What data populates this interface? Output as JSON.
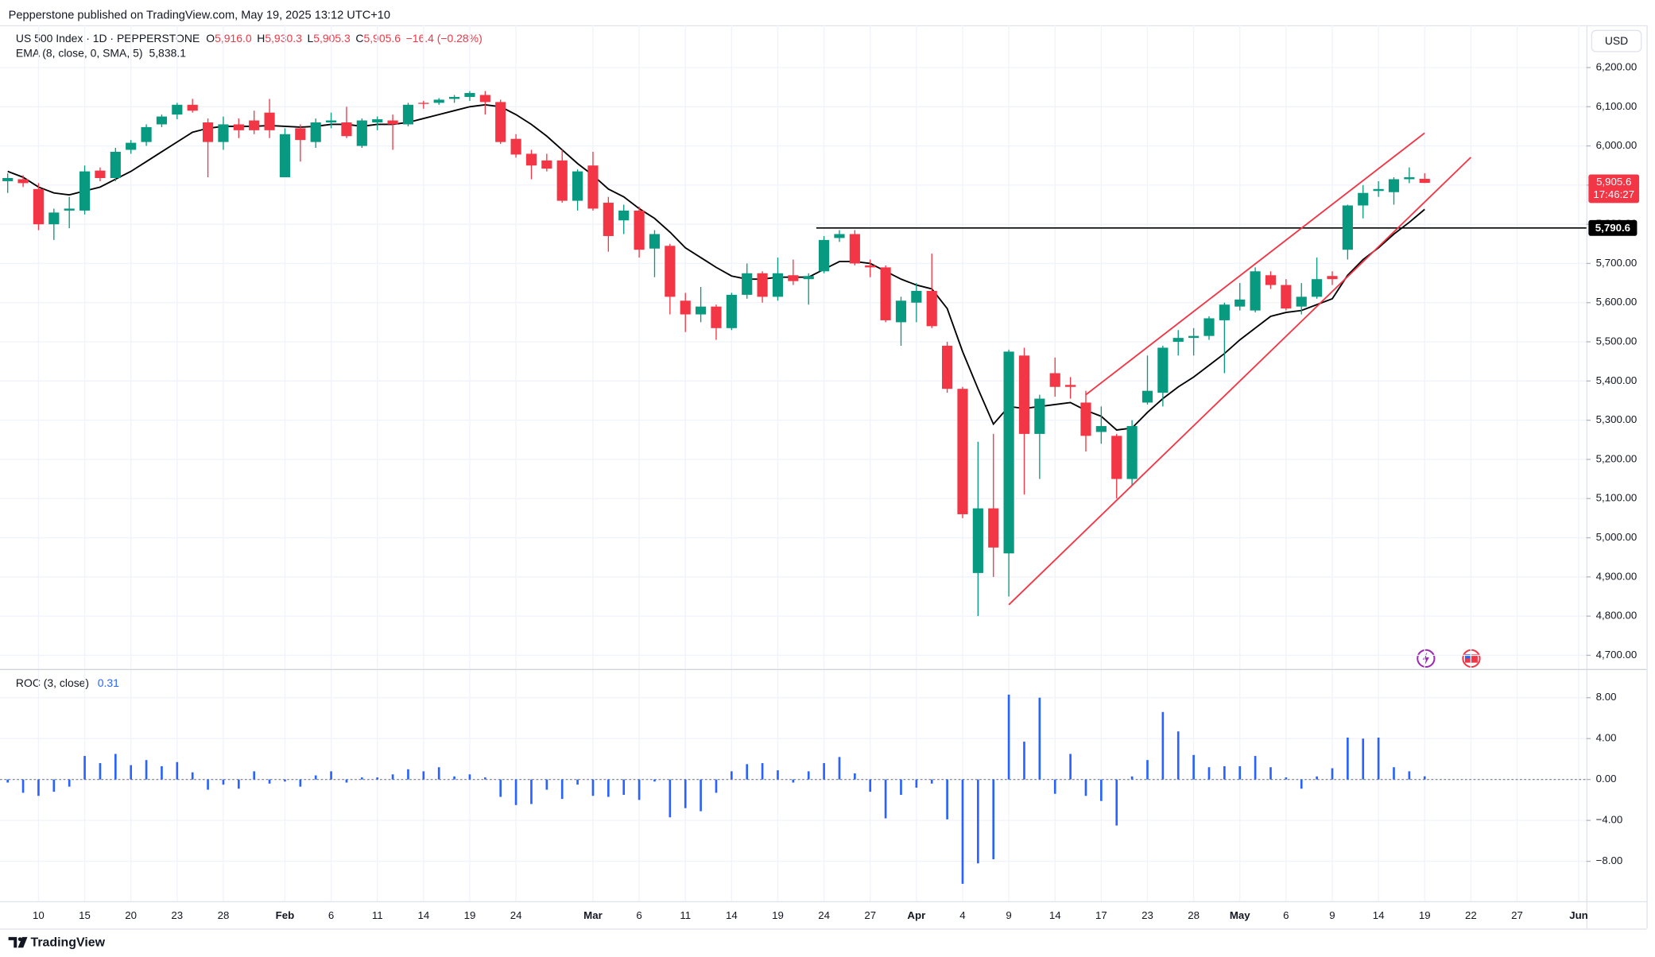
{
  "header": {
    "published": "Pepperstone published on TradingView.com, May 19, 2025 13:12 UTC+10",
    "legend": {
      "symbol": "US 500 Index · 1D · PEPPERSTONE",
      "ohlc": [
        {
          "key": "O",
          "value": "5,916.0"
        },
        {
          "key": "H",
          "value": "5,930.3"
        },
        {
          "key": "L",
          "value": "5,905.3"
        },
        {
          "key": "C",
          "value": "5,905.6"
        }
      ],
      "change": "−16.4 (−0.28%)",
      "ema_name": "EMA (8, close, 0, SMA, 5)",
      "ema_value": "5,838.1"
    },
    "currency": "USD",
    "brand": "TradingView"
  },
  "chart_data": [
    {
      "type": "candlestick",
      "up_color": "#089981",
      "down_color": "#f23645",
      "categories": [
        null,
        null,
        "10",
        null,
        null,
        "15",
        null,
        null,
        "20",
        null,
        null,
        "23",
        null,
        null,
        "28",
        null,
        null,
        null,
        "Feb",
        null,
        null,
        "6",
        null,
        null,
        "11",
        null,
        null,
        "14",
        null,
        null,
        "19",
        null,
        null,
        "24",
        null,
        null,
        null,
        null,
        "Mar",
        null,
        null,
        "6",
        null,
        null,
        "11",
        null,
        null,
        "14",
        null,
        null,
        "19",
        null,
        null,
        "24",
        null,
        null,
        "27",
        null,
        null,
        "Apr",
        null,
        null,
        "4",
        null,
        null,
        "9",
        null,
        null,
        "14",
        null,
        null,
        "17",
        null,
        null,
        "23",
        null,
        null,
        "28",
        null,
        null,
        "May",
        null,
        null,
        "6",
        null,
        null,
        "9",
        null,
        null,
        "14",
        null,
        null,
        "19",
        null,
        null,
        "22",
        null,
        null,
        "27",
        null,
        null,
        null,
        "Jun"
      ],
      "open": [
        5910,
        5915,
        5890,
        5800,
        5835,
        5835,
        5937,
        5918,
        5990,
        6010,
        6055,
        6080,
        6105,
        6060,
        6010,
        6055,
        6065,
        6085,
        5920,
        6045,
        6010,
        6060,
        6060,
        6000,
        6060,
        6065,
        6055,
        6110,
        6110,
        6120,
        6125,
        6130,
        6112,
        6018,
        5980,
        5963,
        5963,
        5860,
        5950,
        5855,
        5810,
        5835,
        5738,
        5745,
        5605,
        5570,
        5590,
        5535,
        5620,
        5675,
        5615,
        5670,
        5660,
        5680,
        5765,
        5775,
        5695,
        5690,
        5550,
        5600,
        5630,
        5490,
        5380,
        4910,
        5075,
        4960,
        5465,
        5265,
        5420,
        5390,
        5345,
        5270,
        5260,
        5150,
        5345,
        5370,
        5500,
        5510,
        5515,
        5555,
        5590,
        5580,
        5670,
        5645,
        5590,
        5615,
        5668,
        5735,
        5848,
        5885,
        5882,
        5915,
        5916.0,
        null,
        null,
        null,
        null,
        null,
        null,
        null,
        null,
        null,
        null
      ],
      "high": [
        5930,
        5925,
        5905,
        5840,
        5870,
        5950,
        5945,
        5995,
        6015,
        6055,
        6080,
        6110,
        6120,
        6070,
        6075,
        6070,
        6090,
        6120,
        6045,
        6055,
        6070,
        6085,
        6100,
        6070,
        6075,
        6080,
        6110,
        6115,
        6122,
        6130,
        6140,
        6140,
        6118,
        6030,
        5990,
        5980,
        5990,
        5940,
        5985,
        5870,
        5850,
        5845,
        5785,
        5750,
        5625,
        5640,
        5595,
        5625,
        5700,
        5680,
        5715,
        5710,
        5675,
        5770,
        5785,
        5785,
        5710,
        5695,
        5615,
        5650,
        5725,
        5500,
        5385,
        5245,
        5265,
        5480,
        5485,
        5365,
        5460,
        5410,
        5375,
        5335,
        5265,
        5300,
        5465,
        5490,
        5530,
        5535,
        5565,
        5600,
        5650,
        5690,
        5680,
        5660,
        5650,
        5715,
        5680,
        5850,
        5900,
        5910,
        5920,
        5945,
        5930.3,
        null,
        null,
        null,
        null,
        null,
        null,
        null,
        null,
        null,
        null
      ],
      "low": [
        5880,
        5895,
        5785,
        5760,
        5790,
        5825,
        5910,
        5910,
        5980,
        6000,
        6048,
        6068,
        6085,
        5920,
        5990,
        6020,
        6030,
        6020,
        5920,
        5960,
        5995,
        6045,
        6020,
        5995,
        6040,
        5990,
        6050,
        6095,
        6105,
        6110,
        6115,
        6080,
        6005,
        5970,
        5915,
        5935,
        5855,
        5835,
        5835,
        5730,
        5775,
        5715,
        5665,
        5570,
        5525,
        5550,
        5505,
        5530,
        5610,
        5600,
        5605,
        5645,
        5595,
        5675,
        5755,
        5695,
        5665,
        5550,
        5490,
        5550,
        5535,
        5370,
        5050,
        4800,
        4900,
        4850,
        5110,
        5150,
        5360,
        5355,
        5220,
        5240,
        5100,
        5135,
        5340,
        5335,
        5465,
        5465,
        5505,
        5420,
        5580,
        5575,
        5635,
        5580,
        5570,
        5610,
        5645,
        5710,
        5815,
        5870,
        5850,
        5905,
        5905.3,
        null,
        null,
        null,
        null,
        null,
        null,
        null,
        null,
        null,
        null
      ],
      "close": [
        5918,
        5905,
        5800,
        5830,
        5840,
        5935,
        5918,
        5985,
        6008,
        6048,
        6075,
        6105,
        6090,
        6010,
        6055,
        6040,
        6040,
        6040,
        6030,
        6015,
        6060,
        6065,
        6025,
        6065,
        6068,
        6055,
        6105,
        6108,
        6118,
        6125,
        6135,
        6112,
        6010,
        5978,
        5950,
        5942,
        5860,
        5935,
        5840,
        5770,
        5835,
        5735,
        5775,
        5615,
        5570,
        5590,
        5535,
        5620,
        5675,
        5615,
        5675,
        5655,
        5668,
        5760,
        5775,
        5700,
        5690,
        5555,
        5605,
        5630,
        5540,
        5380,
        5060,
        5075,
        4975,
        5475,
        5265,
        5355,
        5385,
        5385,
        5260,
        5285,
        5150,
        5285,
        5375,
        5485,
        5510,
        5515,
        5560,
        5595,
        5608,
        5680,
        5645,
        5585,
        5615,
        5660,
        5660,
        5848,
        5880,
        5890,
        5915,
        5920,
        5905.6,
        null,
        null,
        null,
        null,
        null,
        null,
        null,
        null,
        null,
        null
      ],
      "ema": {
        "color": "#000000",
        "values": [
          5935,
          5920,
          5895,
          5880,
          5875,
          5885,
          5895,
          5915,
          5935,
          5960,
          5985,
          6010,
          6035,
          6045,
          6050,
          6050,
          6050,
          6052,
          6050,
          6048,
          6050,
          6055,
          6055,
          6050,
          6055,
          6055,
          6060,
          6070,
          6080,
          6090,
          6100,
          6105,
          6100,
          6080,
          6055,
          6025,
          5990,
          5955,
          5925,
          5890,
          5870,
          5840,
          5815,
          5780,
          5740,
          5715,
          5690,
          5668,
          5660,
          5660,
          5665,
          5665,
          5665,
          5685,
          5705,
          5705,
          5700,
          5680,
          5660,
          5645,
          5635,
          5585,
          5475,
          5380,
          5290,
          5335,
          5330,
          5335,
          5340,
          5345,
          5325,
          5310,
          5275,
          5280,
          5320,
          5355,
          5385,
          5410,
          5440,
          5470,
          5505,
          5535,
          5565,
          5575,
          5580,
          5595,
          5610,
          5670,
          5710,
          5740,
          5775,
          5805,
          5838.1,
          null,
          null,
          null,
          null,
          null,
          null,
          null,
          null,
          null,
          null
        ]
      },
      "trendlines": [
        {
          "color": "#f23645",
          "from": [
            70,
            5365
          ],
          "to": [
            92,
            6033
          ]
        },
        {
          "color": "#f23645",
          "from": [
            65,
            4829
          ],
          "to": [
            95,
            5971
          ]
        }
      ],
      "hline": {
        "value": 5790.6,
        "label": "5,790.6",
        "from": 53,
        "color": "#000000"
      },
      "price_label": {
        "price": "5,905.6",
        "countdown": "17:46:27"
      },
      "ylim": [
        4665,
        6300
      ],
      "yticks": [
        {
          "value": 4700,
          "label": "4,700.00"
        },
        {
          "value": 4800,
          "label": "4,800.00"
        },
        {
          "value": 4900,
          "label": "4,900.00"
        },
        {
          "value": 5000,
          "label": "5,000.00"
        },
        {
          "value": 5100,
          "label": "5,100.00"
        },
        {
          "value": 5200,
          "label": "5,200.00"
        },
        {
          "value": 5300,
          "label": "5,300.00"
        },
        {
          "value": 5400,
          "label": "5,400.00"
        },
        {
          "value": 5500,
          "label": "5,500.00"
        },
        {
          "value": 5600,
          "label": "5,600.00"
        },
        {
          "value": 5700,
          "label": "5,700.00"
        },
        {
          "value": 5800,
          "label": "5,800.00"
        },
        {
          "value": 5900,
          "label": "5,900.00"
        },
        {
          "value": 6000,
          "label": "6,000.00"
        },
        {
          "value": 6100,
          "label": "6,100.00"
        },
        {
          "value": 6200,
          "label": "6,200.00"
        }
      ],
      "grid": true
    },
    {
      "type": "bar",
      "title": "ROC (3, close)",
      "current": "0.31",
      "color": "#2962ff",
      "values": [
        -0.3,
        -1.3,
        -1.6,
        -1.2,
        -0.7,
        2.3,
        1.6,
        2.5,
        1.4,
        1.9,
        1.3,
        1.7,
        0.7,
        -1.0,
        -0.5,
        -0.9,
        0.8,
        -0.4,
        -0.2,
        -0.7,
        0.4,
        0.8,
        -0.3,
        0.2,
        0.2,
        0.5,
        1.0,
        0.8,
        1.2,
        0.3,
        0.5,
        0.2,
        -1.7,
        -2.5,
        -2.4,
        -1.0,
        -1.9,
        -0.5,
        -1.6,
        -1.7,
        -1.5,
        -2.0,
        -0.2,
        -3.7,
        -2.8,
        -3.1,
        -1.3,
        0.8,
        1.5,
        1.6,
        0.9,
        -0.3,
        0.8,
        1.6,
        2.2,
        0.6,
        -1.2,
        -3.8,
        -1.5,
        -0.8,
        -0.4,
        -3.9,
        -10.2,
        -8.2,
        -7.8,
        8.3,
        3.7,
        8.0,
        -1.4,
        2.5,
        -1.6,
        -2.1,
        -4.5,
        0.3,
        1.9,
        6.6,
        4.7,
        2.4,
        1.2,
        1.3,
        1.3,
        2.3,
        1.2,
        0.2,
        -0.9,
        0.3,
        1.1,
        4.1,
        4.0,
        4.1,
        1.2,
        0.8,
        0.31,
        null,
        null,
        null,
        null,
        null,
        null,
        null,
        null,
        null,
        null
      ],
      "ylim": [
        -11.9,
        10.7
      ],
      "yticks": [
        {
          "value": -8,
          "label": "−8.00"
        },
        {
          "value": -4,
          "label": "−4.00"
        },
        {
          "value": 0,
          "label": "0.00"
        },
        {
          "value": 4,
          "label": "4.00"
        },
        {
          "value": 8,
          "label": "8.00"
        }
      ],
      "grid": true
    }
  ]
}
